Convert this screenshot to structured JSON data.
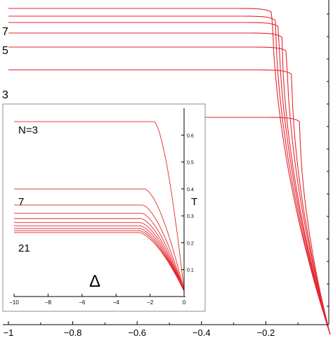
{
  "chart_data": [
    {
      "type": "line",
      "panel": "main",
      "xlim": [
        -1.0,
        0.0
      ],
      "x_ticks": [
        -1,
        -0.8,
        -0.6,
        -0.4,
        -0.2
      ],
      "x_tick_labels": [
        "−1",
        "−0.8",
        "−0.6",
        "−0.4",
        "−0.2"
      ],
      "series_label_texts": [
        "7",
        "5",
        "3"
      ],
      "series": [
        {
          "plateau": 0.9,
          "xdrop": -0.18,
          "label": ""
        },
        {
          "plateau": 0.878,
          "xdrop": -0.17,
          "label": ""
        },
        {
          "plateau": 0.86,
          "xdrop": -0.16,
          "label": ""
        },
        {
          "plateau": 0.83,
          "xdrop": -0.15,
          "label": ""
        },
        {
          "plateau": 0.79,
          "xdrop": -0.135,
          "label": "7"
        },
        {
          "plateau": 0.725,
          "xdrop": -0.12,
          "label": "5"
        },
        {
          "plateau": 0.59,
          "xdrop": -0.095,
          "label": "3"
        }
      ]
    },
    {
      "type": "line",
      "panel": "inset",
      "xlim": [
        -10,
        0
      ],
      "ylim": [
        0,
        0.7
      ],
      "x_ticks": [
        -10,
        -8,
        -6,
        -4,
        -2,
        0
      ],
      "x_tick_labels": [
        "−10",
        "−8",
        "−6",
        "−4",
        "−2",
        "0"
      ],
      "y_ticks": [
        0.1,
        0.2,
        0.3,
        0.4,
        0.5,
        0.6
      ],
      "y_tick_labels": [
        "0.1",
        "0.2",
        "0.3",
        "0.4",
        "0.5",
        "0.6"
      ],
      "xlabel": "Δ",
      "ylabel": "T",
      "annotations": {
        "n3": "N=3",
        "n7": "7",
        "n21": "21"
      },
      "series": [
        {
          "plateau": 0.65,
          "N": "3"
        },
        {
          "plateau": 0.4,
          "N": ""
        },
        {
          "plateau": 0.34,
          "N": "7"
        },
        {
          "plateau": 0.31,
          "N": ""
        },
        {
          "plateau": 0.29,
          "N": ""
        },
        {
          "plateau": 0.275,
          "N": ""
        },
        {
          "plateau": 0.263,
          "N": ""
        },
        {
          "plateau": 0.253,
          "N": ""
        },
        {
          "plateau": 0.245,
          "N": ""
        },
        {
          "plateau": 0.238,
          "N": "21"
        }
      ]
    }
  ]
}
